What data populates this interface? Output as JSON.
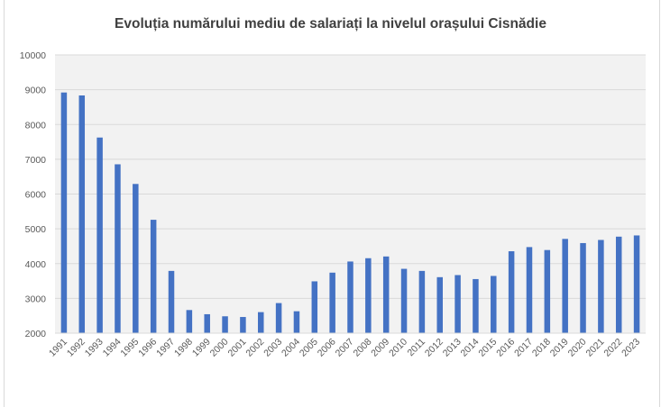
{
  "chart_data": {
    "type": "bar",
    "title": "Evoluția numărului mediu de salariați la nivelul orașului Cisnădie",
    "xlabel": "",
    "ylabel": "",
    "ylim": [
      2000,
      10000
    ],
    "yticks": [
      2000,
      3000,
      4000,
      5000,
      6000,
      7000,
      8000,
      9000,
      10000
    ],
    "grid": true,
    "legend": "none",
    "bar_color": "#4472c4",
    "categories": [
      "1991",
      "1992",
      "1993",
      "1994",
      "1995",
      "1996",
      "1997",
      "1998",
      "1999",
      "2000",
      "2001",
      "2002",
      "2003",
      "2004",
      "2005",
      "2006",
      "2007",
      "2008",
      "2009",
      "2010",
      "2011",
      "2012",
      "2013",
      "2014",
      "2015",
      "2016",
      "2017",
      "2018",
      "2019",
      "2020",
      "2021",
      "2022",
      "2023"
    ],
    "values": [
      8920,
      8835,
      7625,
      6855,
      6290,
      5260,
      3790,
      2665,
      2545,
      2485,
      2465,
      2605,
      2865,
      2630,
      3490,
      3740,
      4060,
      4155,
      4205,
      3850,
      3790,
      3610,
      3670,
      3555,
      3645,
      4355,
      4475,
      4390,
      4710,
      4590,
      4680,
      4775,
      4810
    ]
  }
}
